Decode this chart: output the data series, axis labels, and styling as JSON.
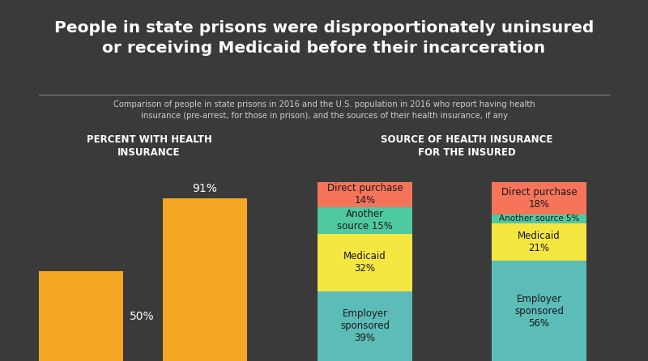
{
  "title": "People in state prisons were disproportionately uninsured\nor receiving Medicaid before their incarceration",
  "subtitle": "Comparison of people in state prisons in 2016 and the U.S. population in 2016 who report having health\ninsurance (pre-arrest, for those in prison), and the sources of their health insurance, if any",
  "background_color": "#3a3a3a",
  "top_strip_color": "#1c1c1c",
  "text_color": "#ffffff",
  "dark_text_color": "#1a1a1a",
  "left_section_title": "PERCENT WITH HEALTH\nINSURANCE",
  "right_section_title": "SOURCE OF HEALTH INSURANCE\nFOR THE INSURED",
  "bar_color": "#f5a623",
  "bar_values": [
    50,
    91
  ],
  "bar_labels": [
    "50%",
    "91%"
  ],
  "segment_colors": [
    "#5bbcb8",
    "#f5e642",
    "#4fc9a0",
    "#f5745a"
  ],
  "prison_values": [
    39,
    32,
    15,
    14
  ],
  "us_values": [
    56,
    21,
    5,
    18
  ],
  "prison_segment_labels": [
    "Employer\nsponsored\n39%",
    "Medicaid\n32%",
    "Another\nsource 15%",
    "Direct purchase\n14%"
  ],
  "us_segment_labels": [
    "Employer\nsponsored\n56%",
    "Medicaid\n21%",
    "Another source 5%",
    "Direct purchase\n18%"
  ],
  "divider_color": "#888888",
  "subtitle_color": "#cccccc"
}
